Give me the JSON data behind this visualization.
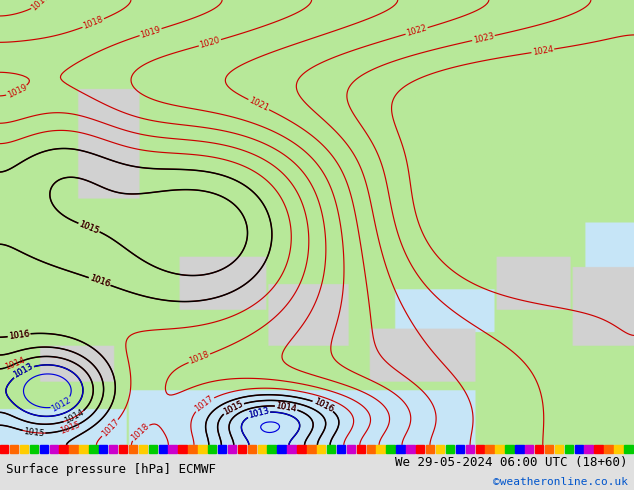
{
  "title_left": "Surface pressure [hPa] ECMWF",
  "title_right": "We 29-05-2024 06:00 UTC (18+60)",
  "copyright": "©weatheronline.co.uk",
  "land_color_rgba": [
    0.72,
    0.91,
    0.6,
    1.0
  ],
  "sea_color_rgba": [
    0.78,
    0.9,
    0.97,
    1.0
  ],
  "highland_color_rgba": [
    0.82,
    0.82,
    0.82,
    1.0
  ],
  "contour_color_red": "#cc0000",
  "contour_color_black": "#000000",
  "contour_color_blue": "#0000dd",
  "text_color_black": "#000000",
  "text_color_blue": "#0055cc",
  "bottom_strip_color": "#e0e0e0",
  "title_fontsize": 9,
  "copyright_fontsize": 8,
  "figsize": [
    6.34,
    4.9
  ],
  "dpi": 100,
  "levels_red": [
    1014,
    1015,
    1016,
    1017,
    1018,
    1019,
    1020,
    1021,
    1022,
    1023,
    1024
  ],
  "levels_black": [
    1013,
    1014,
    1015,
    1016
  ],
  "levels_blue": [
    1012,
    1013
  ],
  "pressure_min": 1010,
  "pressure_max": 1025
}
